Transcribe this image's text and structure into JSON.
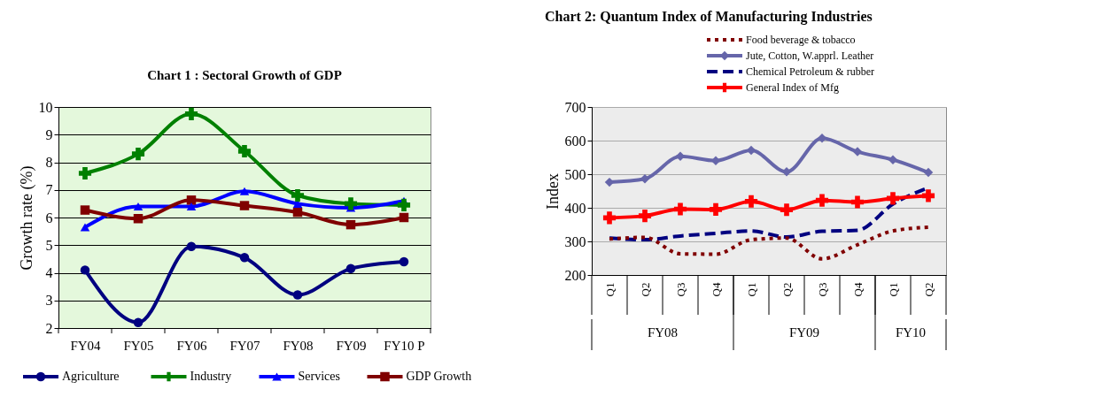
{
  "chart_data": [
    {
      "type": "line",
      "title": "Chart 1 : Sectoral Growth of GDP",
      "ylabel": "Growth rate (%)",
      "categories": [
        "FY04",
        "FY05",
        "FY06",
        "FY07",
        "FY08",
        "FY09",
        "FY10 P"
      ],
      "series": [
        {
          "name": "Agriculture",
          "color": "#000080",
          "marker": "circle",
          "line_style": "solid",
          "values": [
            4.1,
            2.2,
            4.95,
            4.55,
            3.2,
            4.15,
            4.4
          ]
        },
        {
          "name": "Industry",
          "color": "#008000",
          "marker": "cross",
          "line_style": "solid",
          "values": [
            7.6,
            8.3,
            9.75,
            8.4,
            6.8,
            6.5,
            6.45
          ]
        },
        {
          "name": "Services",
          "color": "#0000ff",
          "marker": "triangle",
          "line_style": "solid",
          "values": [
            5.65,
            6.4,
            6.4,
            6.95,
            6.5,
            6.35,
            6.6
          ]
        },
        {
          "name": "GDP Growth",
          "color": "#800000",
          "marker": "square",
          "line_style": "solid",
          "values": [
            6.27,
            5.96,
            6.63,
            6.43,
            6.19,
            5.74,
            6.0
          ]
        }
      ],
      "ylim": [
        2,
        10
      ],
      "yticks": [
        2,
        3,
        4,
        5,
        6,
        7,
        8,
        9,
        10
      ],
      "grid": "y",
      "legend": "bottom"
    },
    {
      "type": "line",
      "title": "Chart 2:  Quantum Index of Manufacturing Industries",
      "ylabel": "Index",
      "categories": [
        "Q1",
        "Q2",
        "Q3",
        "Q4",
        "Q1",
        "Q2",
        "Q3",
        "Q4",
        "Q1",
        "Q2"
      ],
      "series": [
        {
          "name": "Food beverage & tobacco",
          "color": "#800000",
          "marker": "none",
          "line_style": "dotted",
          "values": [
            307,
            312,
            263,
            262,
            305,
            310,
            248,
            290,
            331,
            342
          ]
        },
        {
          "name": "Jute, Cotton, W.apprl. Leather",
          "color": "#6666aa",
          "marker": "diamond",
          "line_style": "solid",
          "values": [
            476,
            486,
            553,
            540,
            571,
            507,
            607,
            567,
            543,
            505
          ]
        },
        {
          "name": "Chemical Petroleum & rubber",
          "color": "#000080",
          "marker": "none",
          "line_style": "dashed",
          "values": [
            310,
            305,
            316,
            324,
            331,
            313,
            330,
            333,
            411,
            460
          ]
        },
        {
          "name": "General Index of Mfg",
          "color": "#ff0000",
          "marker": "cross",
          "line_style": "solid",
          "values": [
            370,
            376,
            396,
            395,
            419,
            394,
            422,
            417,
            428,
            436
          ]
        }
      ],
      "ylim": [
        200,
        700
      ],
      "yticks": [
        200,
        300,
        400,
        500,
        600,
        700
      ],
      "grid": "y",
      "legend": "top",
      "annotations": [
        "FY08",
        "FY09",
        "FY10"
      ]
    }
  ]
}
